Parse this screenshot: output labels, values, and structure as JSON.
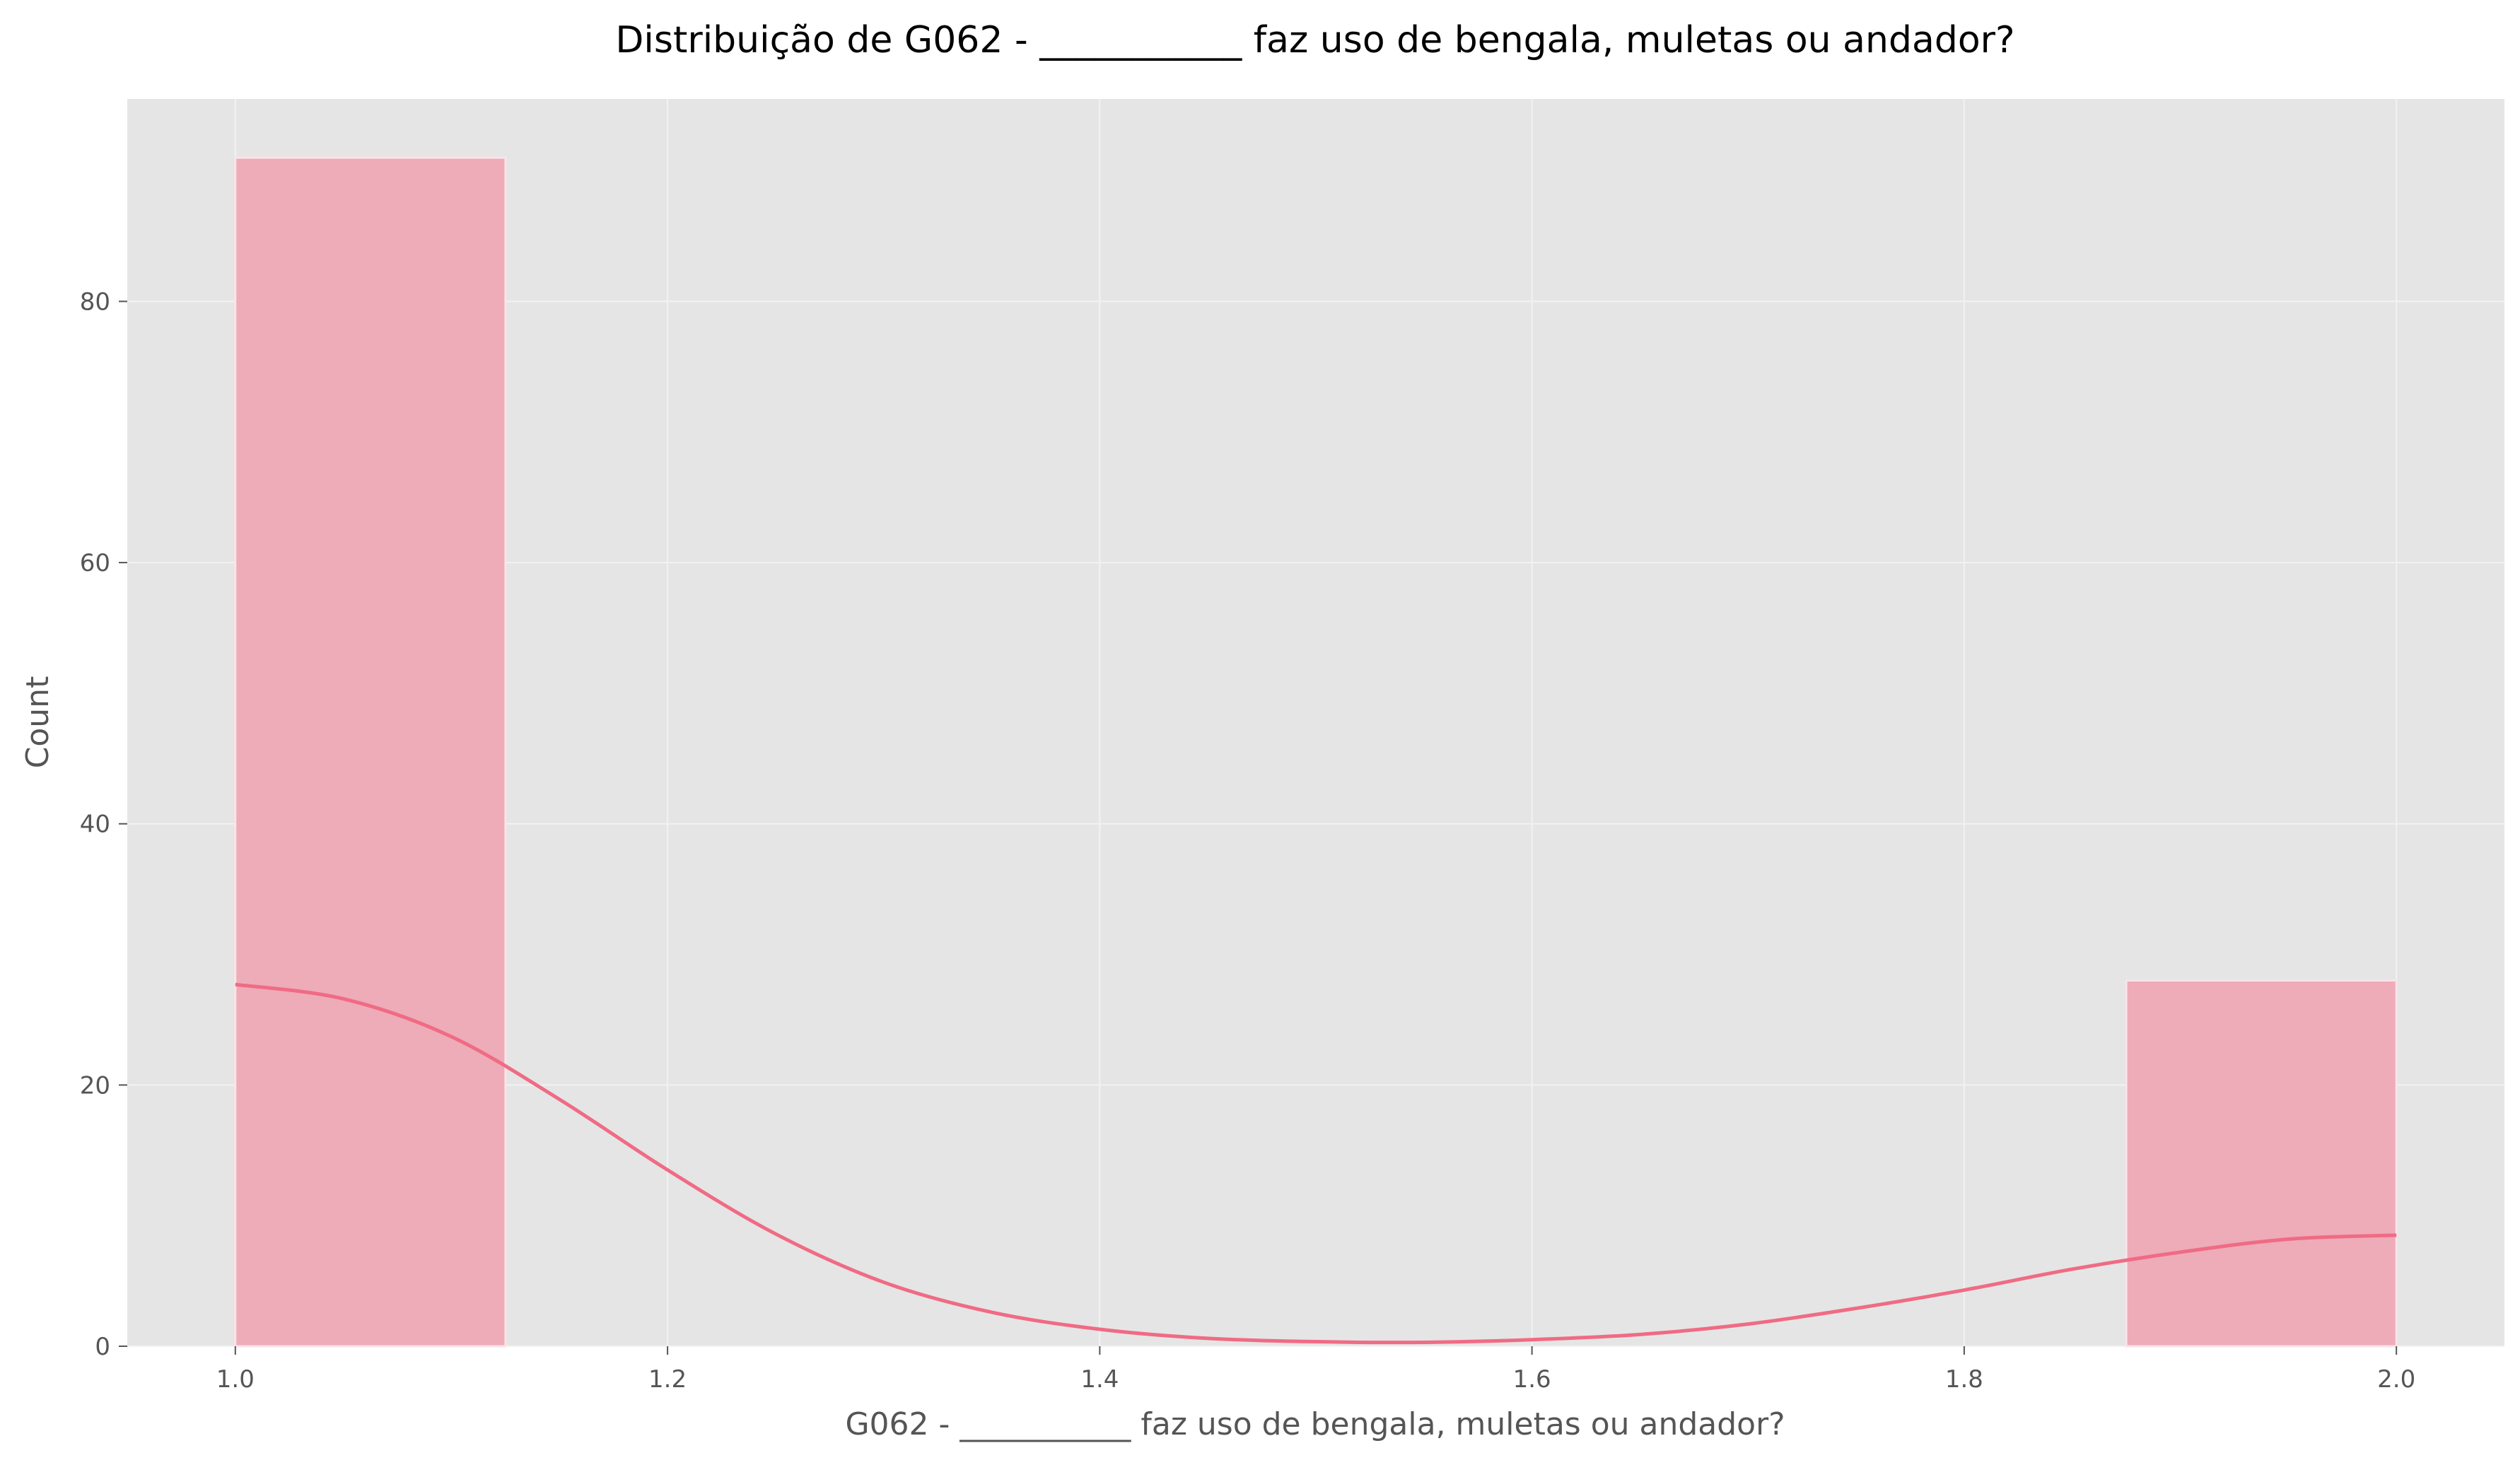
{
  "chart_data": {
    "type": "bar",
    "title": "Distribuição de G062 - ___________ faz uso de bengala, muletas ou andador?",
    "xlabel": "G062 - ___________ faz uso de bengala, muletas ou andador?",
    "ylabel": "Count",
    "xlim": [
      0.95,
      2.05
    ],
    "ylim": [
      0,
      95.5
    ],
    "x_ticks": [
      1.0,
      1.2,
      1.4,
      1.6,
      1.8,
      2.0
    ],
    "x_tick_labels": [
      "1.0",
      "1.2",
      "1.4",
      "1.6",
      "1.8",
      "2.0"
    ],
    "y_ticks": [
      0,
      20,
      40,
      60,
      80
    ],
    "y_tick_labels": [
      "0",
      "20",
      "40",
      "60",
      "80"
    ],
    "grid": true,
    "bins": [
      {
        "x0": 1.0,
        "x1": 1.125,
        "value": 91
      },
      {
        "x0": 1.875,
        "x1": 2.0,
        "value": 28
      }
    ],
    "kde": {
      "x": [
        1.0,
        1.05,
        1.1,
        1.15,
        1.2,
        1.25,
        1.3,
        1.35,
        1.4,
        1.45,
        1.5,
        1.55,
        1.6,
        1.65,
        1.7,
        1.75,
        1.8,
        1.85,
        1.9,
        1.95,
        2.0
      ],
      "y": [
        27.7,
        26.6,
        23.7,
        18.9,
        13.5,
        8.6,
        4.9,
        2.6,
        1.3,
        0.6,
        0.35,
        0.3,
        0.5,
        0.9,
        1.7,
        2.9,
        4.3,
        5.9,
        7.2,
        8.2,
        8.5
      ]
    },
    "colors": {
      "bar_fill": "#eeabb8",
      "bar_edge": "#fbe3e8",
      "kde_line": "#f06b84",
      "plot_bg": "#e5e5e5",
      "grid": "#f2f2f2"
    }
  }
}
